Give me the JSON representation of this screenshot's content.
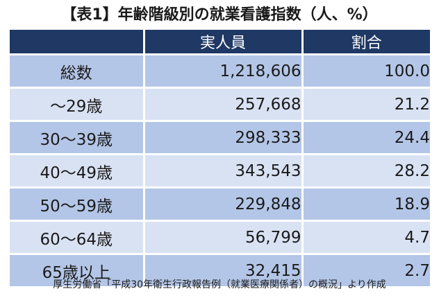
{
  "title": "【表1】年齢階級別の就業看護指数（人、%）",
  "table": {
    "headers": [
      "",
      "実人員",
      "割合"
    ],
    "rows": [
      {
        "label": "総数",
        "count": "1,218,606",
        "pct": "100.0"
      },
      {
        "label": "～29歳",
        "count": "257,668",
        "pct": "21.2"
      },
      {
        "label": "30～39歳",
        "count": "298,333",
        "pct": "24.4"
      },
      {
        "label": "40～49歳",
        "count": "343,543",
        "pct": "28.2"
      },
      {
        "label": "50～59歳",
        "count": "229,848",
        "pct": "18.9"
      },
      {
        "label": "60～64歳",
        "count": "56,799",
        "pct": "4.7"
      },
      {
        "label": "65歳以上",
        "count": "32,415",
        "pct": "2.7"
      }
    ]
  },
  "source": "厚生労働省「平成30年衛生行政報告例（就業医療関係者）の概況」より作成",
  "colors": {
    "header_bg": "#1f3864",
    "band_dark": "#b4c6e7",
    "band_light": "#d9e2f3"
  }
}
